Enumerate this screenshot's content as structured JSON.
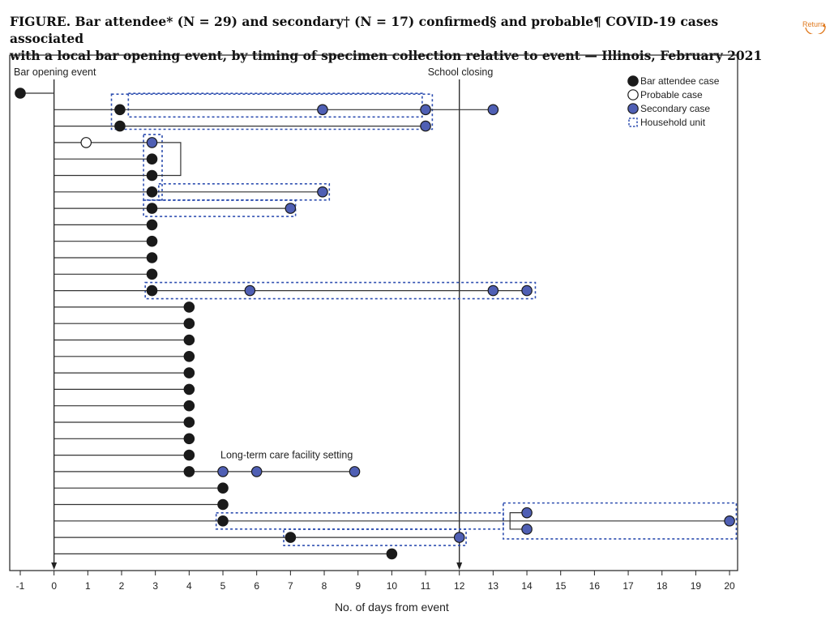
{
  "header": {
    "title_lead": "FIGURE.",
    "title_line1": " Bar attendee* (N = 29) and secondary† (N = 17) confirmed§ and probable¶ COVID-19 cases associated",
    "title_line2": "with a local bar opening event, by timing of specimen collection relative to event — Illinois, February 2021",
    "return_label": "Return"
  },
  "chart_data": {
    "type": "scatter",
    "xlabel": "No. of days from event",
    "ylabel": "",
    "xlim": [
      -1,
      20
    ],
    "x_ticks": [
      -1,
      0,
      1,
      2,
      3,
      4,
      5,
      6,
      7,
      8,
      9,
      10,
      11,
      12,
      13,
      14,
      15,
      16,
      17,
      18,
      19,
      20
    ],
    "grid": false,
    "legend_position": "top-right",
    "legend": [
      {
        "key": "attendee",
        "label": "Bar attendee case"
      },
      {
        "key": "probable",
        "label": "Probable case"
      },
      {
        "key": "secondary",
        "label": "Secondary case"
      },
      {
        "key": "household",
        "label": "Household unit"
      }
    ],
    "colors": {
      "attendee": "#1a1a1a",
      "secondary": "#4f5fb4",
      "probable": "#ffffff",
      "household": "#2f4fb0",
      "line": "#333333"
    },
    "annotations": [
      {
        "label": "Bar opening event",
        "x": 0
      },
      {
        "label": "School closing",
        "x": 12
      },
      {
        "label": "Long-term care facility setting",
        "row": 23
      }
    ],
    "rows": [
      {
        "row": 1,
        "cases": [
          {
            "x": -1,
            "type": "attendee"
          }
        ]
      },
      {
        "row": 2,
        "cases": [
          {
            "x": 1.95,
            "type": "attendee"
          },
          {
            "x": 7.95,
            "type": "secondary"
          },
          {
            "x": 11,
            "type": "secondary"
          },
          {
            "x": 13,
            "type": "secondary"
          }
        ]
      },
      {
        "row": 3,
        "cases": [
          {
            "x": 1.95,
            "type": "attendee"
          },
          {
            "x": 11,
            "type": "secondary"
          }
        ]
      },
      {
        "row": 4,
        "cases": [
          {
            "x": 0.95,
            "type": "probable"
          },
          {
            "x": 2.9,
            "type": "secondary"
          }
        ]
      },
      {
        "row": 5,
        "cases": [
          {
            "x": 2.9,
            "type": "attendee"
          }
        ]
      },
      {
        "row": 6,
        "cases": [
          {
            "x": 2.9,
            "type": "attendee"
          }
        ]
      },
      {
        "row": 7,
        "cases": [
          {
            "x": 2.9,
            "type": "attendee"
          },
          {
            "x": 7.95,
            "type": "secondary"
          }
        ]
      },
      {
        "row": 8,
        "cases": [
          {
            "x": 2.9,
            "type": "attendee"
          },
          {
            "x": 7,
            "type": "secondary"
          }
        ]
      },
      {
        "row": 9,
        "cases": [
          {
            "x": 2.9,
            "type": "attendee"
          }
        ]
      },
      {
        "row": 10,
        "cases": [
          {
            "x": 2.9,
            "type": "attendee"
          }
        ]
      },
      {
        "row": 11,
        "cases": [
          {
            "x": 2.9,
            "type": "attendee"
          }
        ]
      },
      {
        "row": 12,
        "cases": [
          {
            "x": 2.9,
            "type": "attendee"
          }
        ]
      },
      {
        "row": 13,
        "cases": [
          {
            "x": 2.9,
            "type": "attendee"
          },
          {
            "x": 5.8,
            "type": "secondary"
          },
          {
            "x": 13,
            "type": "secondary"
          },
          {
            "x": 14,
            "type": "secondary"
          }
        ]
      },
      {
        "row": 14,
        "cases": [
          {
            "x": 4,
            "type": "attendee"
          }
        ]
      },
      {
        "row": 15,
        "cases": [
          {
            "x": 4,
            "type": "attendee"
          }
        ]
      },
      {
        "row": 16,
        "cases": [
          {
            "x": 4,
            "type": "attendee"
          }
        ]
      },
      {
        "row": 17,
        "cases": [
          {
            "x": 4,
            "type": "attendee"
          }
        ]
      },
      {
        "row": 18,
        "cases": [
          {
            "x": 4,
            "type": "attendee"
          }
        ]
      },
      {
        "row": 19,
        "cases": [
          {
            "x": 4,
            "type": "attendee"
          }
        ]
      },
      {
        "row": 20,
        "cases": [
          {
            "x": 4,
            "type": "attendee"
          }
        ]
      },
      {
        "row": 21,
        "cases": [
          {
            "x": 4,
            "type": "attendee"
          }
        ]
      },
      {
        "row": 22,
        "cases": [
          {
            "x": 4,
            "type": "attendee"
          }
        ]
      },
      {
        "row": 23,
        "cases": [
          {
            "x": 4,
            "type": "attendee"
          }
        ]
      },
      {
        "row": 24,
        "cases": [
          {
            "x": 4,
            "type": "attendee"
          },
          {
            "x": 5,
            "type": "secondary"
          },
          {
            "x": 6,
            "type": "secondary"
          },
          {
            "x": 8.9,
            "type": "secondary"
          }
        ]
      },
      {
        "row": 25,
        "cases": [
          {
            "x": 5,
            "type": "attendee"
          }
        ]
      },
      {
        "row": 26,
        "cases": [
          {
            "x": 5,
            "type": "attendee"
          }
        ]
      },
      {
        "row": 27,
        "cases": [
          {
            "x": 5,
            "type": "attendee"
          },
          {
            "x": 14,
            "type": "secondary"
          },
          {
            "x": 14,
            "type": "secondary"
          },
          {
            "x": 20,
            "type": "secondary"
          }
        ]
      },
      {
        "row": 28,
        "cases": [
          {
            "x": 7,
            "type": "attendee"
          },
          {
            "x": 12,
            "type": "secondary"
          }
        ]
      },
      {
        "row": 29,
        "cases": [
          {
            "x": 10,
            "type": "attendee"
          }
        ]
      }
    ]
  }
}
